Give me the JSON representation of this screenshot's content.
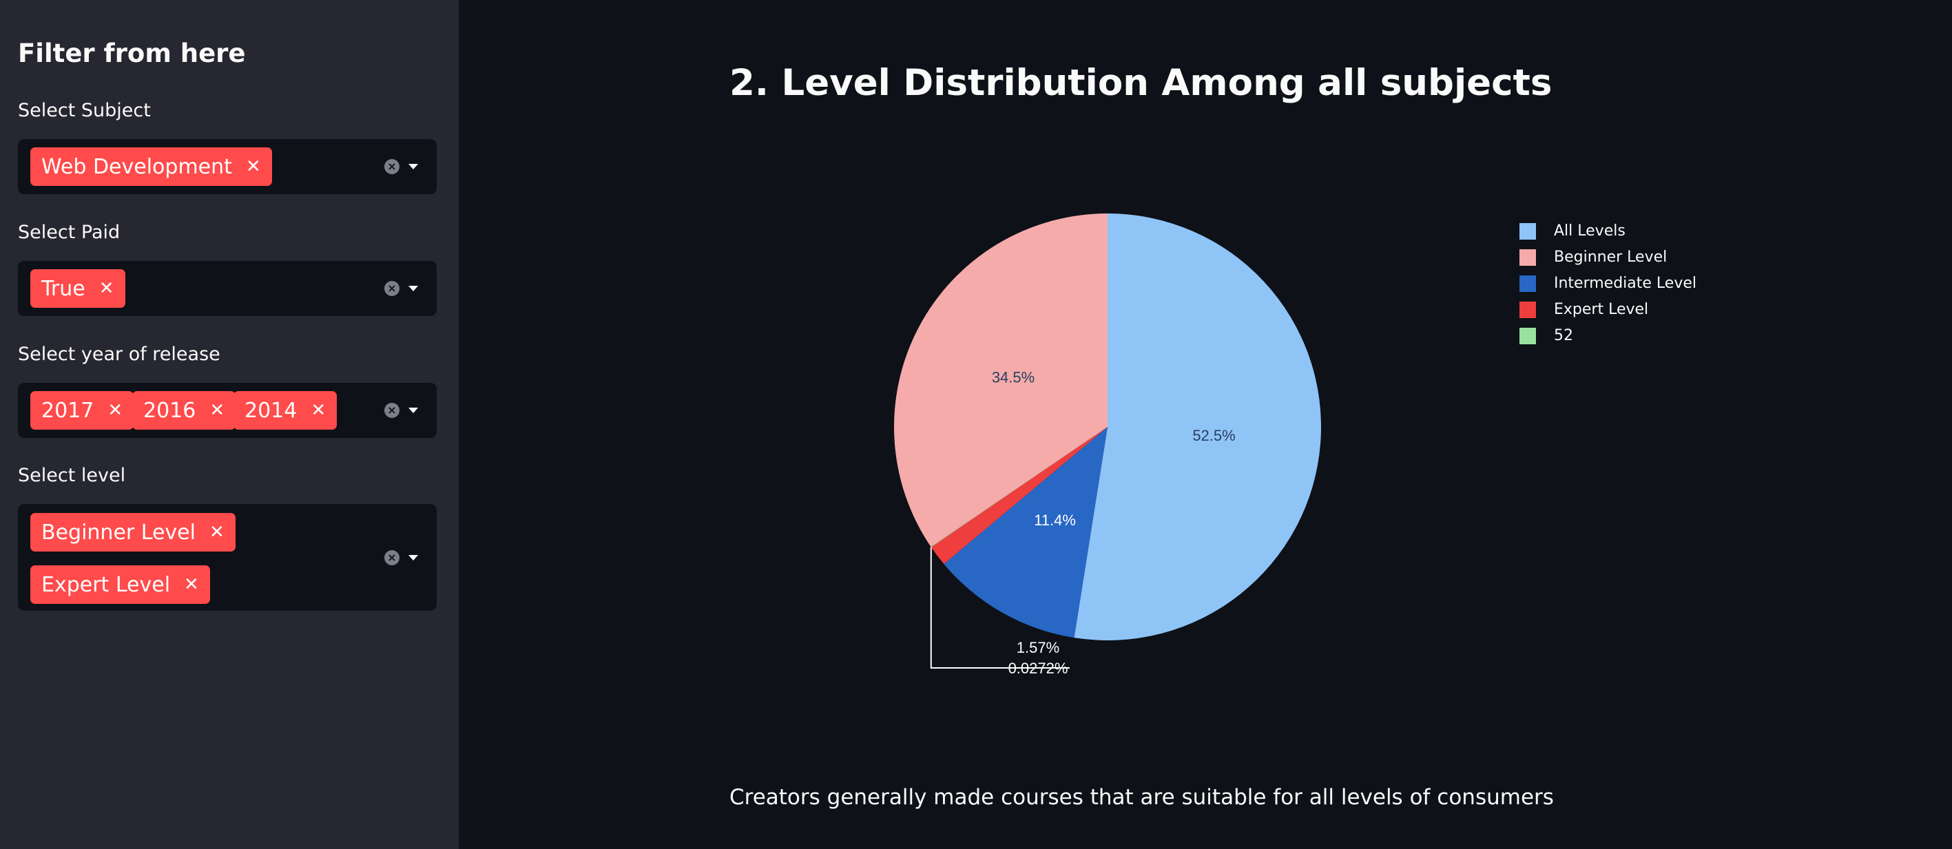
{
  "sidebar": {
    "title": "Filter from here",
    "filters": [
      {
        "label": "Select Subject",
        "tags": [
          "Web Development"
        ]
      },
      {
        "label": "Select Paid",
        "tags": [
          "True"
        ]
      },
      {
        "label": "Select year of release",
        "tags": [
          "2017",
          "2016",
          "2014"
        ]
      },
      {
        "label": "Select level",
        "tags": [
          "Beginner Level",
          "Expert Level"
        ]
      }
    ]
  },
  "main": {
    "title": "2. Level Distribution Among all subjects",
    "caption": "Creators generally made courses that are suitable for all levels of consumers"
  },
  "colors": {
    "background": "#0e1117",
    "sidebar": "#262730",
    "tag": "#ff4b4b"
  },
  "icons": {
    "tag_remove": "close-icon",
    "clear_all": "clear-circle-icon",
    "dropdown": "caret-down-icon"
  },
  "chart_data": {
    "type": "pie",
    "title": "",
    "legend_placement": "right",
    "slices": [
      {
        "label": "All Levels",
        "percent": 52.5,
        "text": "52.5%",
        "color": "#8fc4f7"
      },
      {
        "label": "Intermediate Level",
        "percent": 11.4,
        "text": "11.4%",
        "color": "#2867c4"
      },
      {
        "label": "Expert Level",
        "percent": 1.57,
        "text": "1.57%",
        "color": "#ef3e3e"
      },
      {
        "label": "52",
        "percent": 0.0272,
        "text": "0.0272%",
        "color": "#98e2a0"
      },
      {
        "label": "Beginner Level",
        "percent": 34.5,
        "text": "34.5%",
        "color": "#f4abaa"
      }
    ],
    "legend_order": [
      "All Levels",
      "Beginner Level",
      "Intermediate Level",
      "Expert Level",
      "52"
    ]
  }
}
